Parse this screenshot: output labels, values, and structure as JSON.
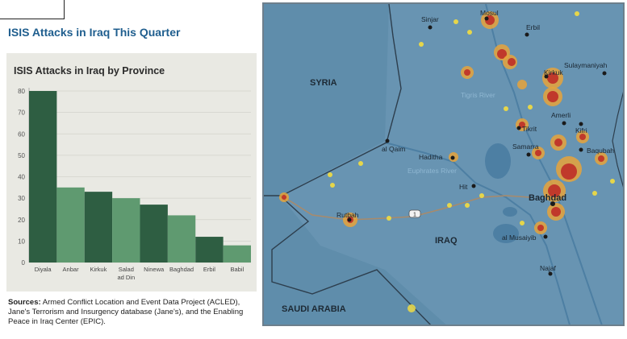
{
  "page_title": "ISIS Attacks in Iraq This Quarter",
  "chart_data": {
    "type": "bar",
    "title": "ISIS Attacks in Iraq by Province",
    "xlabel": "",
    "ylabel": "",
    "ylim": [
      0,
      80
    ],
    "yticks": [
      0,
      10,
      20,
      30,
      40,
      50,
      60,
      70,
      80
    ],
    "categories": [
      "Diyala",
      "Anbar",
      "Kirkuk",
      "Salad ad Din",
      "Ninewa",
      "Baghdad",
      "Erbil",
      "Babil"
    ],
    "category_lines": [
      [
        "Diyala"
      ],
      [
        "Anbar"
      ],
      [
        "Kirkuk"
      ],
      [
        "Salad",
        "ad Din"
      ],
      [
        "Ninewa"
      ],
      [
        "Baghdad"
      ],
      [
        "Erbil"
      ],
      [
        "Babil"
      ]
    ],
    "values": [
      80,
      35,
      33,
      30,
      27,
      22,
      12,
      8
    ],
    "bar_colors": [
      "#2e5e42",
      "#5f9a70",
      "#2e5e42",
      "#5f9a70",
      "#2e5e42",
      "#5f9a70",
      "#2e5e42",
      "#5f9a70"
    ],
    "grid": true
  },
  "sources": {
    "label": "Sources:",
    "text": "Armed Conflict Location and Event Data Project (ACLED), Jane's Terrorism and Insurgency database (Jane's), and the Enabling Peace in Iraq Center (EPIC)."
  },
  "map": {
    "countries": {
      "syria": "SYRIA",
      "iraq": "IRAQ",
      "saudi": "SAUDI ARABIA"
    },
    "cities": {
      "sinjar": "Sinjar",
      "mosul": "Mosul",
      "erbil": "Erbil",
      "sulaymaniyah": "Sulaymaniyah",
      "kirkuk": "Kirkuk",
      "tikrit": "Tikrit",
      "samarra": "Samarra",
      "baqubah": "Baqubah",
      "amerli": "Amerli",
      "kifri": "Kifri",
      "alqaim": "al Qaim",
      "haditha": "Haditha",
      "hit": "Hit",
      "rutbah": "Rutbah",
      "baghdad": "Baghdad",
      "almusaiyib": "al Musaiyib",
      "najaf": "Najaf"
    },
    "rivers": {
      "tigris": "Tigris River",
      "euphrates": "Euphrates River"
    },
    "highway": "1",
    "colors": {
      "water": "#5f8dab",
      "border": "#2d3e4d",
      "hot": "#c0392b",
      "warm": "#e8a33a",
      "cool": "#e6d64a"
    }
  }
}
